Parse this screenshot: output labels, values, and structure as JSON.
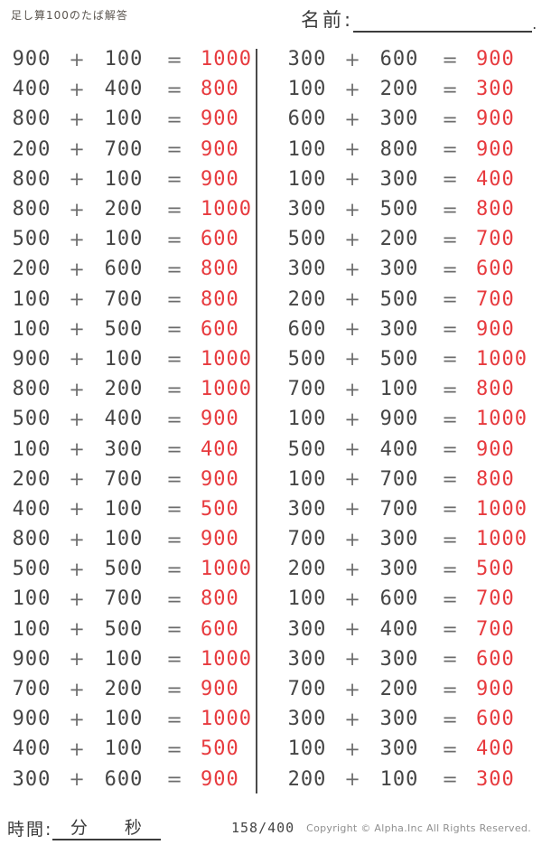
{
  "header": {
    "title": "足し算100のたば解答",
    "name_label": "名前:",
    "name_period": "."
  },
  "symbols": {
    "plus": "+",
    "equals": "="
  },
  "colors": {
    "text": "#454545",
    "answer_red": "#e73a3e"
  },
  "problems": {
    "left": [
      {
        "a": "900",
        "b": "100",
        "ans": "1000"
      },
      {
        "a": "400",
        "b": "400",
        "ans": "800"
      },
      {
        "a": "800",
        "b": "100",
        "ans": "900"
      },
      {
        "a": "200",
        "b": "700",
        "ans": "900"
      },
      {
        "a": "800",
        "b": "100",
        "ans": "900"
      },
      {
        "a": "800",
        "b": "200",
        "ans": "1000"
      },
      {
        "a": "500",
        "b": "100",
        "ans": "600"
      },
      {
        "a": "200",
        "b": "600",
        "ans": "800"
      },
      {
        "a": "100",
        "b": "700",
        "ans": "800"
      },
      {
        "a": "100",
        "b": "500",
        "ans": "600"
      },
      {
        "a": "900",
        "b": "100",
        "ans": "1000"
      },
      {
        "a": "800",
        "b": "200",
        "ans": "1000"
      },
      {
        "a": "500",
        "b": "400",
        "ans": "900"
      },
      {
        "a": "100",
        "b": "300",
        "ans": "400"
      },
      {
        "a": "200",
        "b": "700",
        "ans": "900"
      },
      {
        "a": "400",
        "b": "100",
        "ans": "500"
      },
      {
        "a": "800",
        "b": "100",
        "ans": "900"
      },
      {
        "a": "500",
        "b": "500",
        "ans": "1000"
      },
      {
        "a": "100",
        "b": "700",
        "ans": "800"
      },
      {
        "a": "100",
        "b": "500",
        "ans": "600"
      },
      {
        "a": "900",
        "b": "100",
        "ans": "1000"
      },
      {
        "a": "700",
        "b": "200",
        "ans": "900"
      },
      {
        "a": "900",
        "b": "100",
        "ans": "1000"
      },
      {
        "a": "400",
        "b": "100",
        "ans": "500"
      },
      {
        "a": "300",
        "b": "600",
        "ans": "900"
      }
    ],
    "right": [
      {
        "a": "300",
        "b": "600",
        "ans": "900"
      },
      {
        "a": "100",
        "b": "200",
        "ans": "300"
      },
      {
        "a": "600",
        "b": "300",
        "ans": "900"
      },
      {
        "a": "100",
        "b": "800",
        "ans": "900"
      },
      {
        "a": "100",
        "b": "300",
        "ans": "400"
      },
      {
        "a": "300",
        "b": "500",
        "ans": "800"
      },
      {
        "a": "500",
        "b": "200",
        "ans": "700"
      },
      {
        "a": "300",
        "b": "300",
        "ans": "600"
      },
      {
        "a": "200",
        "b": "500",
        "ans": "700"
      },
      {
        "a": "600",
        "b": "300",
        "ans": "900"
      },
      {
        "a": "500",
        "b": "500",
        "ans": "1000"
      },
      {
        "a": "700",
        "b": "100",
        "ans": "800"
      },
      {
        "a": "100",
        "b": "900",
        "ans": "1000"
      },
      {
        "a": "500",
        "b": "400",
        "ans": "900"
      },
      {
        "a": "100",
        "b": "700",
        "ans": "800"
      },
      {
        "a": "300",
        "b": "700",
        "ans": "1000"
      },
      {
        "a": "700",
        "b": "300",
        "ans": "1000"
      },
      {
        "a": "200",
        "b": "300",
        "ans": "500"
      },
      {
        "a": "100",
        "b": "600",
        "ans": "700"
      },
      {
        "a": "300",
        "b": "400",
        "ans": "700"
      },
      {
        "a": "300",
        "b": "300",
        "ans": "600"
      },
      {
        "a": "700",
        "b": "200",
        "ans": "900"
      },
      {
        "a": "300",
        "b": "300",
        "ans": "600"
      },
      {
        "a": "100",
        "b": "300",
        "ans": "400"
      },
      {
        "a": "200",
        "b": "100",
        "ans": "300"
      }
    ]
  },
  "footer": {
    "time_label": "時間:",
    "minutes_label": "分",
    "seconds_label": "秒",
    "page_number": "158/400",
    "copyright": "Copyright ©  Alpha.Inc All Rights Reserved."
  }
}
